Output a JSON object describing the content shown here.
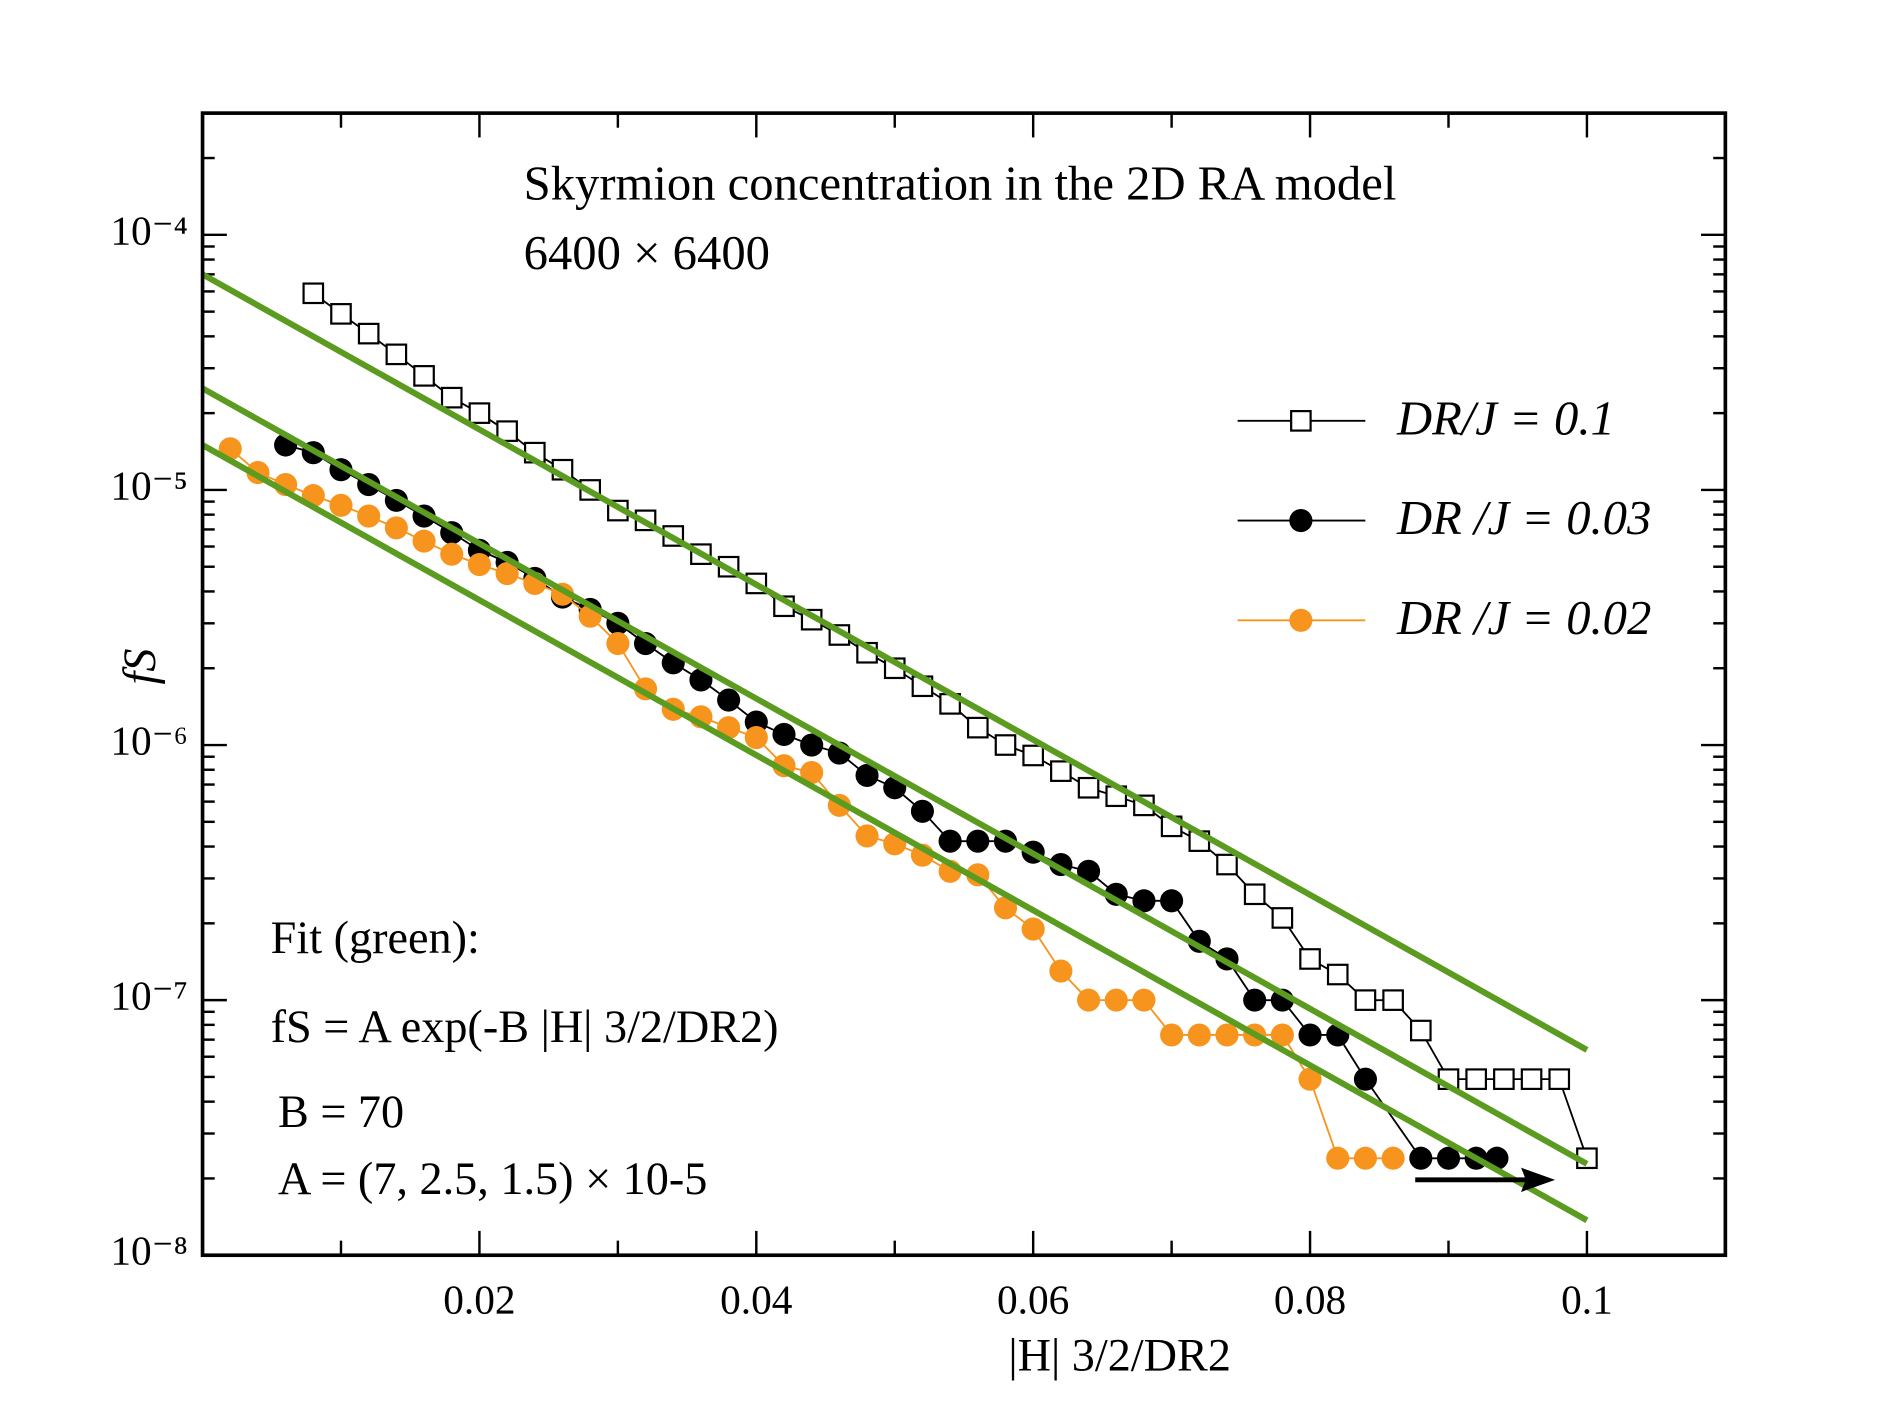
{
  "chart_data": {
    "type": "line",
    "title": "Skyrmion concentration in the 2D RA model",
    "subtitle": "6400 × 6400",
    "xlabel": "|H| 3/2/DR2",
    "ylabel": "fS",
    "annotations": [
      "Fit (green):",
      "fS = A exp(-B |H| 3/2/DR2)",
      "B  = 70",
      "A  = (7, 2.5, 1.5) × 10-5"
    ],
    "xlim": [
      0,
      0.11
    ],
    "xticks": [
      0.02,
      0.04,
      0.06,
      0.08,
      0.1
    ],
    "xminor_ticks": [
      0.01,
      0.03,
      0.05,
      0.07,
      0.09
    ],
    "yscale": "log",
    "ylim": [
      1e-08,
      0.0003
    ],
    "yticks": [
      {
        "value": 1e-08,
        "label": "10⁻⁸"
      },
      {
        "value": 1e-07,
        "label": "10⁻⁷"
      },
      {
        "value": 1e-06,
        "label": "10⁻⁶"
      },
      {
        "value": 1e-05,
        "label": "10⁻⁵"
      },
      {
        "value": 0.0001,
        "label": "10⁻⁴"
      }
    ],
    "yminor_ticks": true,
    "series": [
      {
        "name": "DR/J = 0.1",
        "color": "#000000",
        "marker": "square-open",
        "x": [
          0.008,
          0.01,
          0.012,
          0.014,
          0.016,
          0.018,
          0.02,
          0.022,
          0.024,
          0.026,
          0.028,
          0.03,
          0.032,
          0.034,
          0.036,
          0.038,
          0.04,
          0.042,
          0.044,
          0.046,
          0.048,
          0.05,
          0.052,
          0.054,
          0.056,
          0.058,
          0.06,
          0.062,
          0.064,
          0.066,
          0.068,
          0.07,
          0.072,
          0.074,
          0.076,
          0.078,
          0.08,
          0.082,
          0.084,
          0.086,
          0.088,
          0.09,
          0.092,
          0.094,
          0.096,
          0.098,
          0.1
        ],
        "values": [
          5.9e-05,
          4.9e-05,
          4.1e-05,
          3.4e-05,
          2.8e-05,
          2.3e-05,
          2e-05,
          1.7e-05,
          1.4e-05,
          1.2e-05,
          1e-05,
          8.3e-06,
          7.6e-06,
          6.6e-06,
          5.6e-06,
          5e-06,
          4.3e-06,
          3.5e-06,
          3.1e-06,
          2.7e-06,
          2.3e-06,
          2e-06,
          1.7e-06,
          1.45e-06,
          1.17e-06,
          1e-06,
          9.1e-07,
          7.9e-07,
          6.8e-07,
          6.3e-07,
          5.8e-07,
          4.8e-07,
          4.2e-07,
          3.4e-07,
          2.6e-07,
          2.1e-07,
          1.45e-07,
          1.26e-07,
          1e-07,
          1e-07,
          7.6e-08,
          4.9e-08,
          4.9e-08,
          4.9e-08,
          4.9e-08,
          4.9e-08,
          2.4e-08
        ]
      },
      {
        "name": "DR /J = 0.03",
        "color": "#000000",
        "marker": "circle",
        "x": [
          0.006,
          0.008,
          0.01,
          0.012,
          0.014,
          0.016,
          0.018,
          0.02,
          0.022,
          0.024,
          0.026,
          0.028,
          0.03,
          0.032,
          0.034,
          0.036,
          0.038,
          0.04,
          0.042,
          0.044,
          0.046,
          0.048,
          0.05,
          0.052,
          0.054,
          0.056,
          0.058,
          0.06,
          0.062,
          0.064,
          0.066,
          0.068,
          0.07,
          0.072,
          0.074,
          0.076,
          0.078,
          0.08,
          0.082,
          0.084,
          0.088,
          0.09,
          0.092,
          0.0935
        ],
        "values": [
          1.5e-05,
          1.4e-05,
          1.2e-05,
          1.05e-05,
          9.1e-06,
          7.9e-06,
          6.8e-06,
          5.8e-06,
          5.2e-06,
          4.5e-06,
          3.8e-06,
          3.4e-06,
          3e-06,
          2.5e-06,
          2.1e-06,
          1.8e-06,
          1.5e-06,
          1.23e-06,
          1.1e-06,
          1e-06,
          9.3e-07,
          7.6e-07,
          6.8e-07,
          5.5e-07,
          4.2e-07,
          4.2e-07,
          4.2e-07,
          3.8e-07,
          3.4e-07,
          3.2e-07,
          2.6e-07,
          2.45e-07,
          2.45e-07,
          1.7e-07,
          1.45e-07,
          1e-07,
          1e-07,
          7.3e-08,
          7.3e-08,
          4.9e-08,
          2.4e-08,
          2.4e-08,
          2.4e-08,
          2.4e-08
        ]
      },
      {
        "name": "DR /J = 0.02",
        "color": "#f7941d",
        "marker": "circle",
        "x": [
          0.002,
          0.004,
          0.006,
          0.008,
          0.01,
          0.012,
          0.014,
          0.016,
          0.018,
          0.02,
          0.022,
          0.024,
          0.026,
          0.028,
          0.03,
          0.032,
          0.034,
          0.036,
          0.038,
          0.04,
          0.042,
          0.044,
          0.046,
          0.048,
          0.05,
          0.052,
          0.054,
          0.056,
          0.058,
          0.06,
          0.062,
          0.064,
          0.066,
          0.068,
          0.07,
          0.072,
          0.074,
          0.076,
          0.078,
          0.08,
          0.082,
          0.084,
          0.086
        ],
        "values": [
          1.45e-05,
          1.17e-05,
          1.05e-05,
          9.5e-06,
          8.7e-06,
          7.9e-06,
          7.1e-06,
          6.3e-06,
          5.6e-06,
          5.1e-06,
          4.7e-06,
          4.3e-06,
          3.9e-06,
          3.2e-06,
          2.5e-06,
          1.66e-06,
          1.38e-06,
          1.29e-06,
          1.17e-06,
          1.07e-06,
          8.3e-07,
          7.8e-07,
          5.8e-07,
          4.4e-07,
          4.1e-07,
          3.7e-07,
          3.2e-07,
          3.1e-07,
          2.3e-07,
          1.9e-07,
          1.3e-07,
          1e-07,
          1e-07,
          1e-07,
          7.3e-08,
          7.3e-08,
          7.3e-08,
          7.3e-08,
          7.3e-08,
          4.9e-08,
          2.4e-08,
          2.4e-08,
          2.4e-08
        ]
      },
      {
        "color": "#5b9b1f",
        "marker": "none",
        "x": [
          0,
          0.1
        ],
        "values": [
          7e-05,
          6.38e-08
        ]
      },
      {
        "color": "#5b9b1f",
        "marker": "none",
        "x": [
          0,
          0.1
        ],
        "values": [
          2.5e-05,
          2.28e-08
        ]
      },
      {
        "color": "#5b9b1f",
        "marker": "none",
        "x": [
          0,
          0.1
        ],
        "values": [
          1.5e-05,
          1.37e-08
        ]
      }
    ]
  }
}
